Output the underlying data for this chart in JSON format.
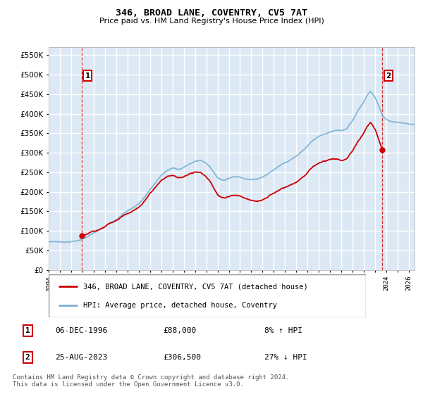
{
  "title": "346, BROAD LANE, COVENTRY, CV5 7AT",
  "subtitle": "Price paid vs. HM Land Registry's House Price Index (HPI)",
  "bg_color": "#ffffff",
  "plot_bg_color": "#dce9f5",
  "grid_color": "#ffffff",
  "hpi_color": "#7ab0d4",
  "price_color": "#cc0000",
  "annotation_color": "#cc0000",
  "ylim": [
    0,
    570000
  ],
  "yticks": [
    0,
    50000,
    100000,
    150000,
    200000,
    250000,
    300000,
    350000,
    400000,
    450000,
    500000,
    550000
  ],
  "point1_x": 1996.92,
  "point1_y": 88000,
  "point2_x": 2023.65,
  "point2_y": 306500,
  "legend_label1": "346, BROAD LANE, COVENTRY, CV5 7AT (detached house)",
  "legend_label2": "HPI: Average price, detached house, Coventry",
  "table_row1": [
    "1",
    "06-DEC-1996",
    "£88,000",
    "8% ↑ HPI"
  ],
  "table_row2": [
    "2",
    "25-AUG-2023",
    "£306,500",
    "27% ↓ HPI"
  ],
  "footer": "Contains HM Land Registry data © Crown copyright and database right 2024.\nThis data is licensed under the Open Government Licence v3.0.",
  "xmin": 1994.0,
  "xmax": 2026.5,
  "hpi_anchors_x": [
    1994.0,
    1994.5,
    1995.0,
    1995.5,
    1996.0,
    1996.5,
    1997.0,
    1997.5,
    1998.0,
    1998.5,
    1999.0,
    1999.5,
    2000.0,
    2000.5,
    2001.0,
    2001.5,
    2002.0,
    2002.5,
    2003.0,
    2003.5,
    2004.0,
    2004.5,
    2005.0,
    2005.5,
    2006.0,
    2006.5,
    2007.0,
    2007.5,
    2008.0,
    2008.5,
    2009.0,
    2009.5,
    2010.0,
    2010.5,
    2011.0,
    2011.5,
    2012.0,
    2012.5,
    2013.0,
    2013.5,
    2014.0,
    2014.5,
    2015.0,
    2015.5,
    2016.0,
    2016.5,
    2017.0,
    2017.5,
    2018.0,
    2018.5,
    2019.0,
    2019.5,
    2020.0,
    2020.5,
    2021.0,
    2021.5,
    2022.0,
    2022.3,
    2022.6,
    2023.0,
    2023.3,
    2023.65,
    2024.0,
    2024.5,
    2025.0,
    2025.5,
    2026.0,
    2026.5
  ],
  "hpi_anchors_y": [
    72000,
    73000,
    72000,
    72500,
    73000,
    75000,
    80000,
    86000,
    93000,
    100000,
    108000,
    118000,
    128000,
    140000,
    150000,
    158000,
    168000,
    185000,
    205000,
    222000,
    240000,
    252000,
    258000,
    255000,
    260000,
    268000,
    275000,
    278000,
    272000,
    255000,
    235000,
    228000,
    235000,
    238000,
    237000,
    235000,
    232000,
    234000,
    240000,
    248000,
    258000,
    268000,
    278000,
    285000,
    295000,
    308000,
    322000,
    335000,
    342000,
    348000,
    352000,
    356000,
    355000,
    360000,
    380000,
    408000,
    430000,
    448000,
    458000,
    440000,
    420000,
    395000,
    385000,
    380000,
    378000,
    376000,
    374000,
    372000
  ]
}
